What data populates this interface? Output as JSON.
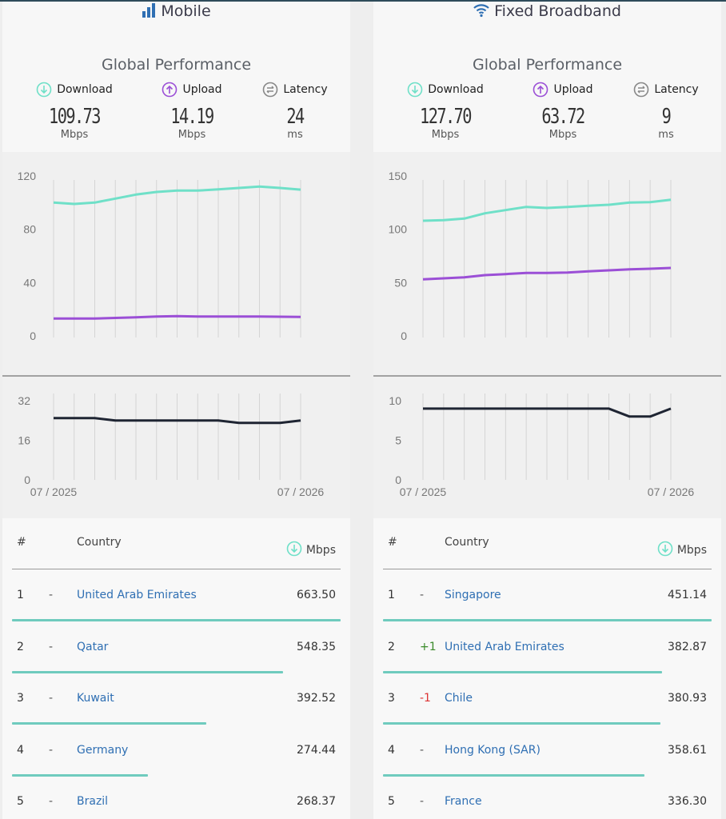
{
  "colors": {
    "download": "#6fe0c8",
    "upload": "#9b4fd6",
    "latency": "#1f2533",
    "link": "#2f6fb3",
    "bar": "#6fcbbe"
  },
  "panels": [
    {
      "id": "mobile",
      "title": "Mobile",
      "title_icon": "signal-bars-icon",
      "global_title": "Global Performance",
      "metrics": [
        {
          "label": "Download",
          "value": "109.73",
          "unit": "Mbps",
          "icon": "download-arrow-icon"
        },
        {
          "label": "Upload",
          "value": "14.19",
          "unit": "Mbps",
          "icon": "upload-arrow-icon"
        },
        {
          "label": "Latency",
          "value": "24",
          "unit": "ms",
          "icon": "latency-arrows-icon"
        }
      ],
      "speed_ticks": [
        "120",
        "80",
        "40",
        "0"
      ],
      "latency_ticks": [
        "32",
        "16",
        "0"
      ],
      "x_labels": [
        "07 / 2025",
        "07 / 2026"
      ],
      "table": {
        "headers": {
          "rank": "#",
          "country": "Country",
          "metric": "Mbps"
        },
        "rows": [
          {
            "rank": "1",
            "change": "-",
            "country": "United Arab Emirates",
            "speed": "663.50",
            "bar_fraction": 1.0
          },
          {
            "rank": "2",
            "change": "-",
            "country": "Qatar",
            "speed": "548.35",
            "bar_fraction": 0.826
          },
          {
            "rank": "3",
            "change": "-",
            "country": "Kuwait",
            "speed": "392.52",
            "bar_fraction": 0.592
          },
          {
            "rank": "4",
            "change": "-",
            "country": "Germany",
            "speed": "274.44",
            "bar_fraction": 0.414
          },
          {
            "rank": "5",
            "change": "-",
            "country": "Brazil",
            "speed": "268.37",
            "bar_fraction": 0.404
          }
        ]
      }
    },
    {
      "id": "fixed",
      "title": "Fixed Broadband",
      "title_icon": "wifi-icon",
      "global_title": "Global Performance",
      "metrics": [
        {
          "label": "Download",
          "value": "127.70",
          "unit": "Mbps",
          "icon": "download-arrow-icon"
        },
        {
          "label": "Upload",
          "value": "63.72",
          "unit": "Mbps",
          "icon": "upload-arrow-icon"
        },
        {
          "label": "Latency",
          "value": "9",
          "unit": "ms",
          "icon": "latency-arrows-icon"
        }
      ],
      "speed_ticks": [
        "150",
        "100",
        "50",
        "0"
      ],
      "latency_ticks": [
        "10",
        "5",
        "0"
      ],
      "x_labels": [
        "07 / 2025",
        "07 / 2026"
      ],
      "table": {
        "headers": {
          "rank": "#",
          "country": "Country",
          "metric": "Mbps"
        },
        "rows": [
          {
            "rank": "1",
            "change": "-",
            "country": "Singapore",
            "speed": "451.14",
            "bar_fraction": 1.0
          },
          {
            "rank": "2",
            "change": "+1",
            "country": "United Arab Emirates",
            "speed": "382.87",
            "bar_fraction": 0.849
          },
          {
            "rank": "3",
            "change": "-1",
            "country": "Chile",
            "speed": "380.93",
            "bar_fraction": 0.844
          },
          {
            "rank": "4",
            "change": "-",
            "country": "Hong Kong (SAR)",
            "speed": "358.61",
            "bar_fraction": 0.795
          },
          {
            "rank": "5",
            "change": "-",
            "country": "France",
            "speed": "336.30",
            "bar_fraction": 0.745
          }
        ]
      }
    }
  ],
  "chart_data": [
    {
      "type": "line",
      "panel": "mobile",
      "x_range": [
        "07 / 2025",
        "07 / 2026"
      ],
      "ylim": [
        0,
        120
      ],
      "series": [
        {
          "name": "Download",
          "values": [
            100,
            99,
            100,
            103,
            106,
            108,
            109,
            109,
            110,
            111,
            112,
            111,
            109.73
          ]
        },
        {
          "name": "Upload",
          "values": [
            13,
            13,
            13,
            13.5,
            14,
            14.5,
            14.8,
            14.6,
            14.6,
            14.6,
            14.6,
            14.4,
            14.19
          ]
        }
      ]
    },
    {
      "type": "line",
      "panel": "mobile",
      "x_range": [
        "07 / 2025",
        "07 / 2026"
      ],
      "ylim": [
        0,
        32
      ],
      "series": [
        {
          "name": "Latency",
          "values": [
            25,
            25,
            25,
            24,
            24,
            24,
            24,
            24,
            24,
            23,
            23,
            23,
            24
          ]
        }
      ]
    },
    {
      "type": "line",
      "panel": "fixed",
      "x_range": [
        "07 / 2025",
        "07 / 2026"
      ],
      "ylim": [
        0,
        150
      ],
      "series": [
        {
          "name": "Download",
          "values": [
            108,
            108.5,
            110,
            115,
            118,
            121,
            120,
            121,
            122,
            123,
            125,
            125.5,
            127.7
          ]
        },
        {
          "name": "Upload",
          "values": [
            53,
            54,
            55,
            57,
            58,
            59,
            59,
            59.5,
            60.5,
            61.5,
            62.5,
            63,
            63.72
          ]
        }
      ]
    },
    {
      "type": "line",
      "panel": "fixed",
      "x_range": [
        "07 / 2025",
        "07 / 2026"
      ],
      "ylim": [
        0,
        10
      ],
      "series": [
        {
          "name": "Latency",
          "values": [
            9,
            9,
            9,
            9,
            9,
            9,
            9,
            9,
            9,
            9,
            8,
            8,
            9
          ]
        }
      ]
    }
  ]
}
